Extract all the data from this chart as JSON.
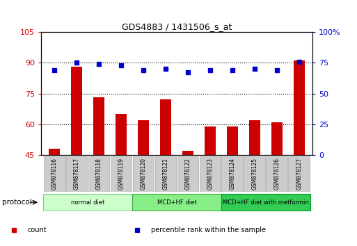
{
  "title": "GDS4883 / 1431506_s_at",
  "samples": [
    "GSM878116",
    "GSM878117",
    "GSM878118",
    "GSM878119",
    "GSM878120",
    "GSM878121",
    "GSM878122",
    "GSM878123",
    "GSM878124",
    "GSM878125",
    "GSM878126",
    "GSM878127"
  ],
  "bar_values": [
    48,
    88,
    73,
    65,
    62,
    72,
    47,
    59,
    59,
    62,
    61,
    91
  ],
  "percentile_values": [
    69,
    75,
    74,
    73,
    69,
    70,
    67,
    69,
    69,
    70,
    69,
    76
  ],
  "bar_color": "#cc0000",
  "dot_color": "#0000cc",
  "ylim_left": [
    45,
    105
  ],
  "ylim_right": [
    0,
    100
  ],
  "yticks_left": [
    45,
    60,
    75,
    90,
    105
  ],
  "yticks_right": [
    0,
    25,
    50,
    75,
    100
  ],
  "ytick_labels_right": [
    "0",
    "25",
    "50",
    "75",
    "100%"
  ],
  "gridlines_at": [
    60,
    75,
    90
  ],
  "groups": [
    {
      "label": "normal diet",
      "start": 0,
      "end": 3,
      "color": "#ccffcc",
      "edge": "#88cc88"
    },
    {
      "label": "MCD+HF diet",
      "start": 4,
      "end": 7,
      "color": "#88ee88",
      "edge": "#44aa44"
    },
    {
      "label": "MCD+HF diet with metformin",
      "start": 8,
      "end": 11,
      "color": "#33cc55",
      "edge": "#009922"
    }
  ],
  "protocol_label": "protocol",
  "legend_items": [
    {
      "label": "count",
      "color": "#cc0000"
    },
    {
      "label": "percentile rank within the sample",
      "color": "#0000cc"
    }
  ],
  "background_color": "#ffffff",
  "bar_width": 0.5,
  "sample_box_color": "#cccccc",
  "sample_box_edge": "#aaaaaa"
}
